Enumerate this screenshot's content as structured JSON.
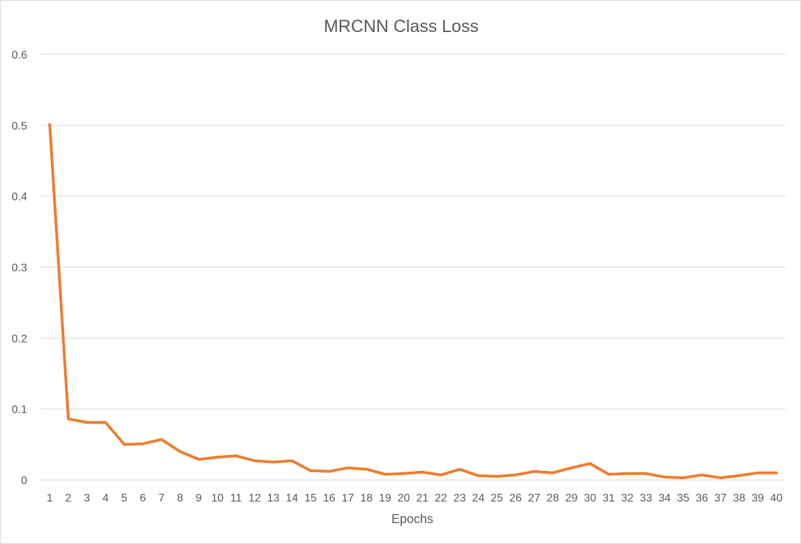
{
  "chart_data": {
    "type": "line",
    "title": "MRCNN Class Loss",
    "xlabel": "Epochs",
    "ylabel": "",
    "ylim": [
      0,
      0.6
    ],
    "yticks": [
      0,
      0.1,
      0.2,
      0.3,
      0.4,
      0.5,
      0.6
    ],
    "ytick_labels": [
      "0",
      "0.1",
      "0.2",
      "0.3",
      "0.4",
      "0.5",
      "0.6"
    ],
    "grid": true,
    "legend": "none",
    "categories": [
      "1",
      "2",
      "3",
      "4",
      "5",
      "6",
      "7",
      "8",
      "9",
      "10",
      "11",
      "12",
      "13",
      "14",
      "15",
      "16",
      "17",
      "18",
      "19",
      "20",
      "21",
      "22",
      "23",
      "24",
      "25",
      "26",
      "27",
      "28",
      "29",
      "30",
      "31",
      "32",
      "33",
      "34",
      "35",
      "36",
      "37",
      "38",
      "39",
      "40"
    ],
    "series": [
      {
        "color": "#ed7d31",
        "values": [
          0.501,
          0.086,
          0.081,
          0.081,
          0.05,
          0.051,
          0.057,
          0.04,
          0.029,
          0.032,
          0.034,
          0.027,
          0.025,
          0.027,
          0.013,
          0.012,
          0.017,
          0.015,
          0.008,
          0.009,
          0.011,
          0.007,
          0.015,
          0.006,
          0.005,
          0.007,
          0.012,
          0.01,
          0.017,
          0.023,
          0.008,
          0.009,
          0.009,
          0.004,
          0.003,
          0.007,
          0.003,
          0.006,
          0.01,
          0.01
        ]
      }
    ]
  }
}
